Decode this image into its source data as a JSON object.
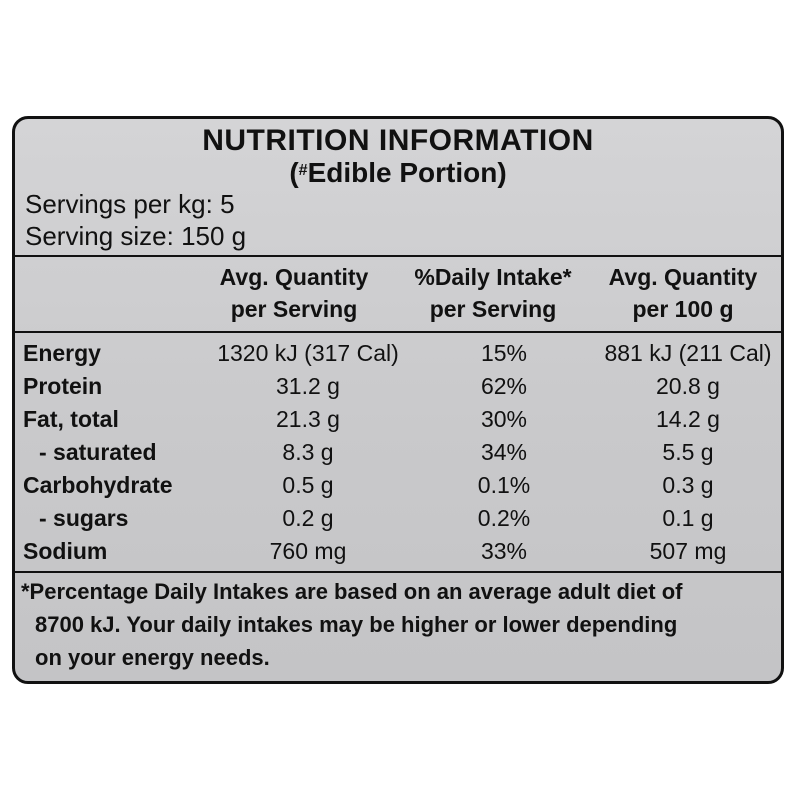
{
  "panel": {
    "title": "NUTRITION INFORMATION",
    "subtitle_mark": "#",
    "subtitle_text": "Edible Portion",
    "servings_per_kg": "Servings per kg: 5",
    "serving_size": "Serving size: 150 g"
  },
  "columns": [
    {
      "line1": "Avg. Quantity",
      "line2": "per Serving"
    },
    {
      "line1": "%Daily Intake*",
      "line2": "per Serving"
    },
    {
      "line1": "Avg. Quantity",
      "line2": "per 100 g"
    }
  ],
  "rows": [
    {
      "name": "Energy",
      "per_serving": "1320 kJ (317 Cal)",
      "di": "15%",
      "per_100g": "881 kJ (211 Cal)"
    },
    {
      "name": "Protein",
      "per_serving": "31.2 g",
      "di": "62%",
      "per_100g": "20.8 g"
    },
    {
      "name": "Fat, total",
      "per_serving": "21.3 g",
      "di": "30%",
      "per_100g": "14.2 g"
    },
    {
      "name": "- saturated",
      "per_serving": "8.3 g",
      "di": "34%",
      "per_100g": "5.5 g"
    },
    {
      "name": "Carbohydrate",
      "per_serving": "0.5 g",
      "di": "0.1%",
      "per_100g": "0.3 g"
    },
    {
      "name": "- sugars",
      "per_serving": "0.2 g",
      "di": "0.2%",
      "per_100g": "0.1 g"
    },
    {
      "name": "Sodium",
      "per_serving": "760 mg",
      "di": "33%",
      "per_100g": "507 mg"
    }
  ],
  "footnote": {
    "line1": "*Percentage Daily Intakes are based on an average adult diet of",
    "line2": "8700 kJ. Your daily intakes may be higher or lower depending",
    "line3": "on your energy needs."
  }
}
